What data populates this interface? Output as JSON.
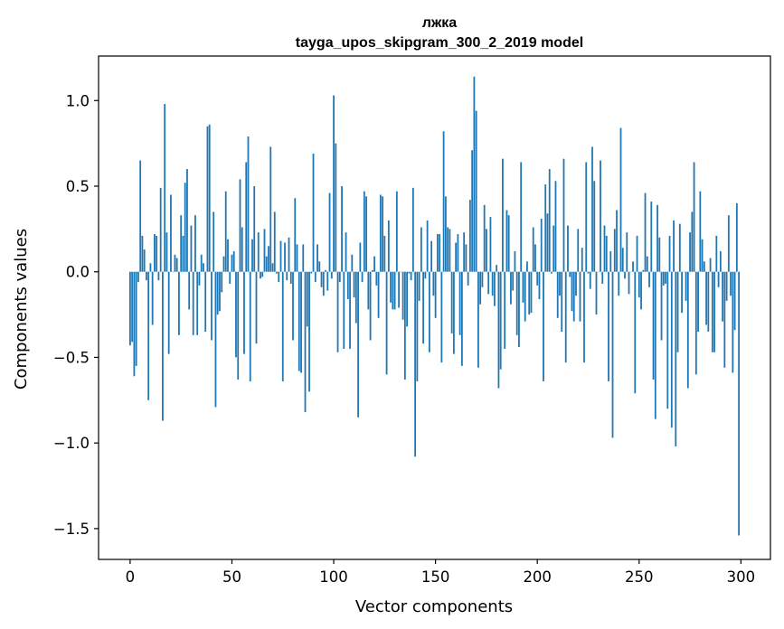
{
  "chart_data": {
    "type": "bar",
    "title": "лжка",
    "subtitle": "tayga_upos_skipgram_300_2_2019 model",
    "xlabel": "Vector components",
    "ylabel": "Components values",
    "xlim": [
      -15.5,
      314.5
    ],
    "ylim": [
      -1.68,
      1.26
    ],
    "xticks": [
      0,
      50,
      100,
      150,
      200,
      250,
      300
    ],
    "yticks": [
      1.0,
      0.5,
      0.0,
      -0.5,
      -1.0,
      -1.5
    ],
    "ytick_labels": [
      "1.0",
      "0.5",
      "0.0",
      "−0.5",
      "−1.0",
      "−1.5"
    ],
    "bar_color": "#1f77b4",
    "grid": false,
    "x": [
      0,
      1,
      2,
      3,
      4,
      5,
      6,
      7,
      8,
      9,
      10,
      11,
      12,
      13,
      14,
      15,
      16,
      17,
      18,
      19,
      20,
      21,
      22,
      23,
      24,
      25,
      26,
      27,
      28,
      29,
      30,
      31,
      32,
      33,
      34,
      35,
      36,
      37,
      38,
      39,
      40,
      41,
      42,
      43,
      44,
      45,
      46,
      47,
      48,
      49,
      50,
      51,
      52,
      53,
      54,
      55,
      56,
      57,
      58,
      59,
      60,
      61,
      62,
      63,
      64,
      65,
      66,
      67,
      68,
      69,
      70,
      71,
      72,
      73,
      74,
      75,
      76,
      77,
      78,
      79,
      80,
      81,
      82,
      83,
      84,
      85,
      86,
      87,
      88,
      89,
      90,
      91,
      92,
      93,
      94,
      95,
      96,
      97,
      98,
      99,
      100,
      101,
      102,
      103,
      104,
      105,
      106,
      107,
      108,
      109,
      110,
      111,
      112,
      113,
      114,
      115,
      116,
      117,
      118,
      119,
      120,
      121,
      122,
      123,
      124,
      125,
      126,
      127,
      128,
      129,
      130,
      131,
      132,
      133,
      134,
      135,
      136,
      137,
      138,
      139,
      140,
      141,
      142,
      143,
      144,
      145,
      146,
      147,
      148,
      149,
      150,
      151,
      152,
      153,
      154,
      155,
      156,
      157,
      158,
      159,
      160,
      161,
      162,
      163,
      164,
      165,
      166,
      167,
      168,
      169,
      170,
      171,
      172,
      173,
      174,
      175,
      176,
      177,
      178,
      179,
      180,
      181,
      182,
      183,
      184,
      185,
      186,
      187,
      188,
      189,
      190,
      191,
      192,
      193,
      194,
      195,
      196,
      197,
      198,
      199,
      200,
      201,
      202,
      203,
      204,
      205,
      206,
      207,
      208,
      209,
      210,
      211,
      212,
      213,
      214,
      215,
      216,
      217,
      218,
      219,
      220,
      221,
      222,
      223,
      224,
      225,
      226,
      227,
      228,
      229,
      230,
      231,
      232,
      233,
      234,
      235,
      236,
      237,
      238,
      239,
      240,
      241,
      242,
      243,
      244,
      245,
      246,
      247,
      248,
      249,
      250,
      251,
      252,
      253,
      254,
      255,
      256,
      257,
      258,
      259,
      260,
      261,
      262,
      263,
      264,
      265,
      266,
      267,
      268,
      269,
      270,
      271,
      272,
      273,
      274,
      275,
      276,
      277,
      278,
      279,
      280,
      281,
      282,
      283,
      284,
      285,
      286,
      287,
      288,
      289,
      290,
      291,
      292,
      293,
      294,
      295,
      296,
      297,
      298,
      299
    ],
    "values": [
      -0.43,
      -0.41,
      -0.61,
      -0.55,
      -0.06,
      0.65,
      0.21,
      0.13,
      -0.05,
      -0.75,
      0.05,
      -0.31,
      0.22,
      0.21,
      -0.05,
      0.49,
      -0.87,
      0.98,
      0.23,
      -0.48,
      0.45,
      0.0,
      0.1,
      0.08,
      -0.37,
      0.33,
      0.21,
      0.52,
      0.6,
      -0.22,
      0.27,
      -0.37,
      0.33,
      -0.37,
      -0.08,
      0.1,
      0.05,
      -0.35,
      0.85,
      0.86,
      -0.4,
      0.35,
      -0.79,
      -0.25,
      -0.23,
      -0.12,
      0.09,
      0.47,
      0.19,
      -0.07,
      0.1,
      0.12,
      -0.5,
      -0.63,
      0.54,
      0.26,
      -0.48,
      0.64,
      0.79,
      -0.64,
      0.19,
      0.5,
      -0.42,
      0.23,
      -0.04,
      -0.03,
      0.25,
      0.09,
      0.15,
      0.73,
      0.05,
      0.35,
      -0.01,
      -0.06,
      0.18,
      -0.64,
      0.17,
      -0.05,
      0.2,
      -0.07,
      -0.4,
      0.43,
      0.16,
      -0.58,
      -0.59,
      0.16,
      -0.82,
      -0.32,
      -0.7,
      -0.01,
      0.69,
      -0.06,
      0.16,
      0.06,
      -0.09,
      -0.14,
      0.01,
      -0.11,
      0.46,
      -0.04,
      1.03,
      0.75,
      -0.47,
      -0.06,
      0.5,
      -0.45,
      0.23,
      -0.16,
      -0.45,
      0.1,
      -0.15,
      -0.3,
      -0.85,
      0.17,
      -0.06,
      0.47,
      0.44,
      -0.22,
      -0.4,
      0.01,
      0.09,
      -0.08,
      -0.27,
      0.45,
      0.44,
      0.21,
      -0.6,
      0.3,
      -0.18,
      -0.22,
      -0.22,
      0.47,
      -0.21,
      0.0,
      -0.28,
      -0.63,
      -0.32,
      -0.01,
      -0.05,
      0.49,
      -1.08,
      -0.64,
      -0.17,
      0.26,
      -0.42,
      -0.04,
      0.3,
      -0.47,
      0.18,
      -0.14,
      -0.27,
      0.22,
      0.22,
      -0.53,
      0.82,
      0.44,
      0.26,
      0.25,
      -0.36,
      -0.48,
      0.17,
      0.22,
      -0.37,
      -0.55,
      0.23,
      0.16,
      -0.08,
      0.42,
      0.71,
      1.14,
      0.94,
      -0.56,
      -0.19,
      -0.09,
      0.39,
      0.25,
      -0.13,
      0.32,
      -0.14,
      -0.2,
      0.04,
      -0.68,
      -0.57,
      0.66,
      -0.45,
      0.36,
      0.33,
      -0.19,
      -0.11,
      0.12,
      -0.37,
      -0.44,
      0.64,
      -0.18,
      -0.29,
      0.06,
      -0.25,
      -0.24,
      0.26,
      0.16,
      -0.08,
      -0.16,
      0.31,
      -0.64,
      0.51,
      0.34,
      0.6,
      -0.01,
      0.27,
      0.53,
      -0.27,
      -0.14,
      -0.35,
      0.66,
      -0.53,
      0.27,
      -0.03,
      -0.23,
      -0.29,
      -0.14,
      0.25,
      -0.29,
      0.14,
      -0.53,
      0.64,
      -0.01,
      -0.1,
      0.73,
      0.53,
      -0.25,
      0.0,
      0.65,
      -0.07,
      0.27,
      0.21,
      -0.64,
      0.12,
      -0.97,
      0.25,
      0.36,
      -0.14,
      0.84,
      0.14,
      -0.04,
      0.23,
      -0.13,
      0.0,
      0.06,
      -0.71,
      0.21,
      -0.15,
      -0.22,
      0.01,
      0.46,
      0.09,
      -0.09,
      0.41,
      -0.63,
      -0.86,
      0.39,
      0.2,
      -0.4,
      -0.08,
      -0.07,
      -0.8,
      0.21,
      -0.91,
      0.3,
      -1.02,
      -0.47,
      0.28,
      -0.24,
      0.0,
      -0.17,
      -0.68,
      0.23,
      0.35,
      0.64,
      -0.6,
      -0.35,
      0.47,
      0.19,
      0.06,
      -0.31,
      -0.35,
      0.08,
      -0.47,
      -0.47,
      0.21,
      -0.09,
      0.12,
      -0.29,
      -0.56,
      -0.17,
      0.33,
      -0.14,
      -0.59,
      -0.34,
      0.4,
      -1.54
    ]
  }
}
